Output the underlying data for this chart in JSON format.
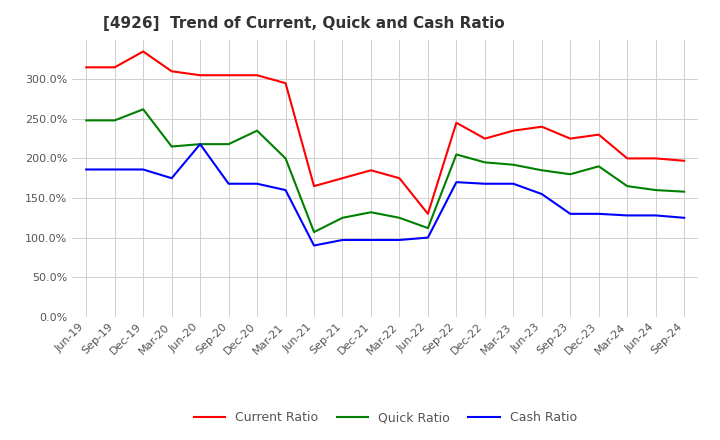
{
  "title": "[4926]  Trend of Current, Quick and Cash Ratio",
  "x_labels": [
    "Jun-19",
    "Sep-19",
    "Dec-19",
    "Mar-20",
    "Jun-20",
    "Sep-20",
    "Dec-20",
    "Mar-21",
    "Jun-21",
    "Sep-21",
    "Dec-21",
    "Mar-22",
    "Jun-22",
    "Sep-22",
    "Dec-22",
    "Mar-23",
    "Jun-23",
    "Sep-23",
    "Dec-23",
    "Mar-24",
    "Jun-24",
    "Sep-24"
  ],
  "current_ratio": [
    315,
    315,
    335,
    310,
    305,
    305,
    305,
    295,
    165,
    175,
    185,
    175,
    130,
    245,
    225,
    235,
    240,
    225,
    230,
    200,
    200,
    197
  ],
  "quick_ratio": [
    248,
    248,
    262,
    215,
    218,
    218,
    235,
    200,
    107,
    125,
    132,
    125,
    112,
    205,
    195,
    192,
    185,
    180,
    190,
    165,
    160,
    158
  ],
  "cash_ratio": [
    186,
    186,
    186,
    175,
    218,
    168,
    168,
    160,
    90,
    97,
    97,
    97,
    100,
    170,
    168,
    168,
    155,
    130,
    130,
    128,
    128,
    125
  ],
  "current_color": "#ff0000",
  "quick_color": "#008000",
  "cash_color": "#0000ff",
  "ylim": [
    0,
    350
  ],
  "yticks": [
    0,
    50,
    100,
    150,
    200,
    250,
    300
  ],
  "background_color": "#ffffff",
  "grid_color": "#d0d0d0",
  "title_fontsize": 11,
  "tick_fontsize": 8,
  "legend_labels": [
    "Current Ratio",
    "Quick Ratio",
    "Cash Ratio"
  ]
}
